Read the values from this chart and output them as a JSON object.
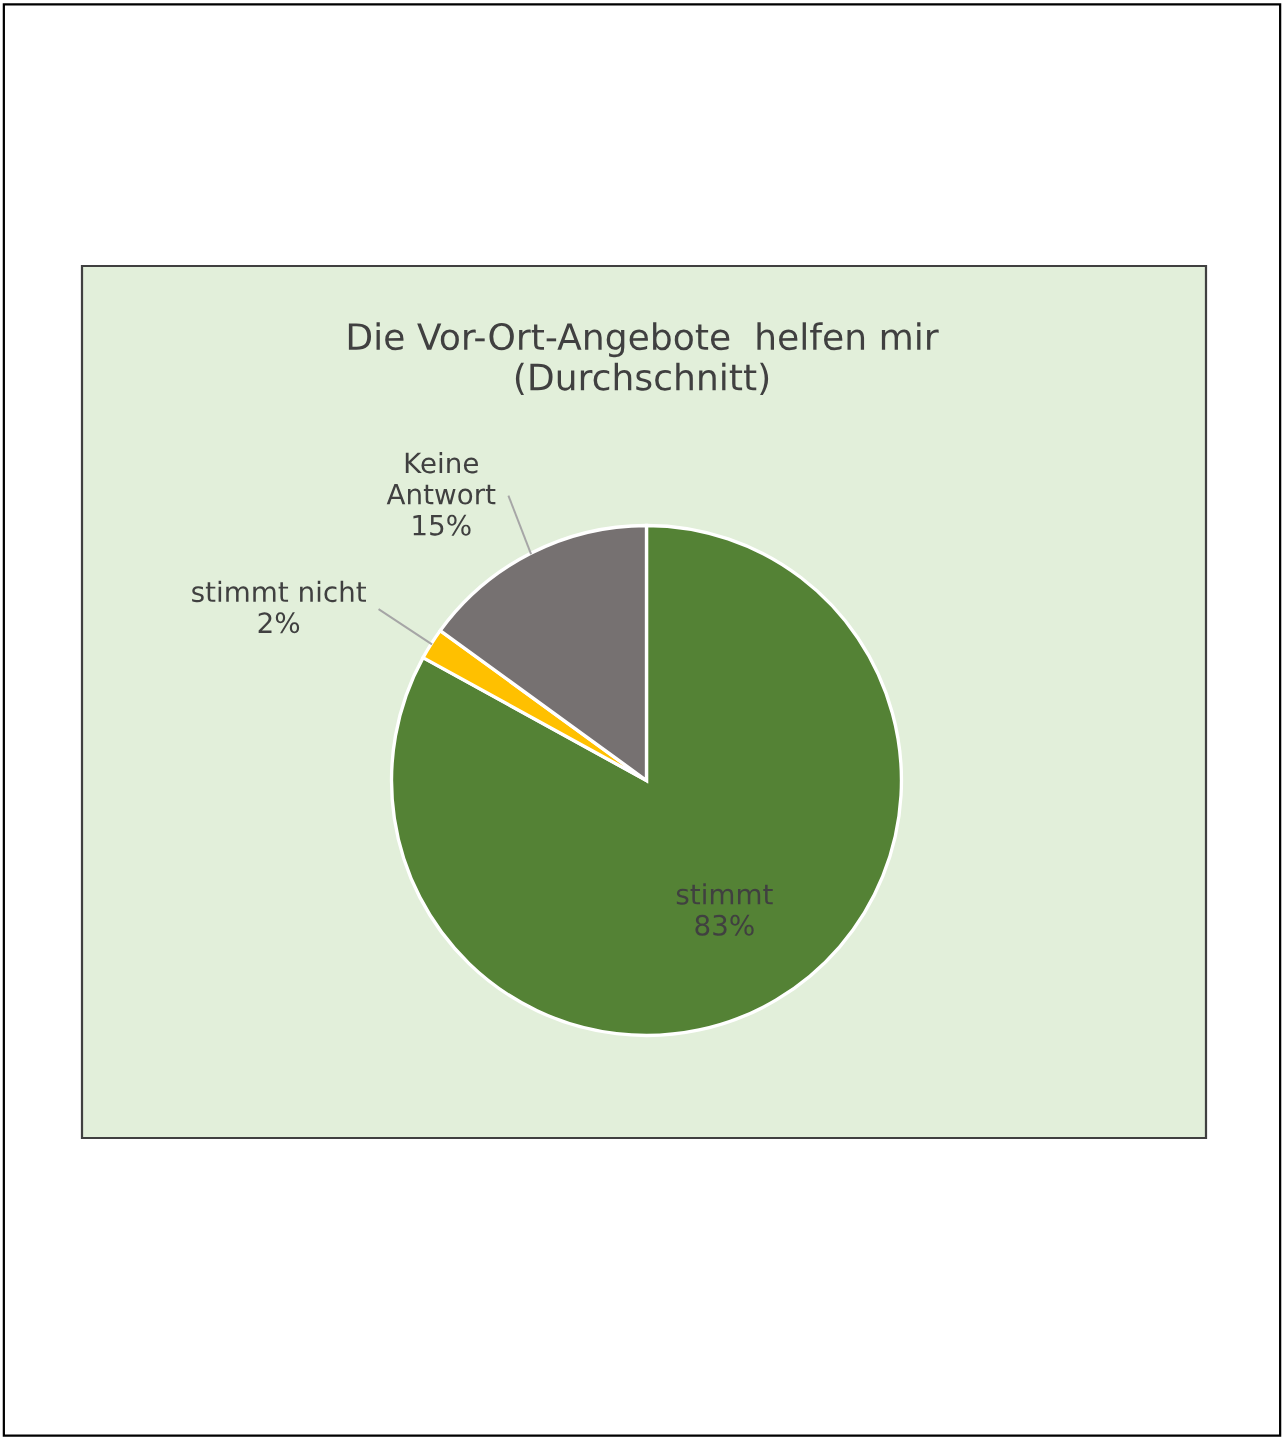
{
  "chart_data": {
    "type": "pie",
    "title": "Die Vor-Ort-Angebote  helfen mir\n(Durchschnitt)",
    "categories": [
      "stimmt",
      "stimmt nicht",
      "Keine\nAntwort"
    ],
    "values": [
      83,
      2,
      15
    ],
    "colors": [
      "#548235",
      "#ffc000",
      "#767171"
    ],
    "value_labels": [
      "83%",
      "2%",
      "15%"
    ],
    "legend": false
  }
}
